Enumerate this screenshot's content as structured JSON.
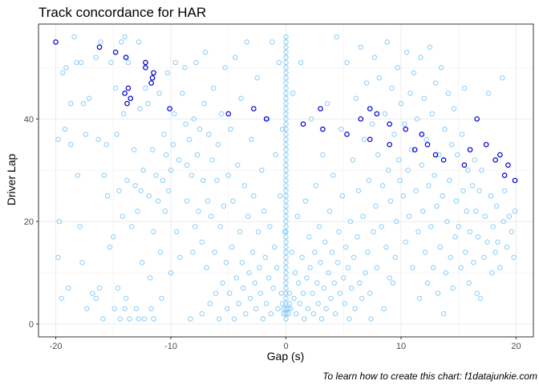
{
  "chart_data": {
    "type": "scatter",
    "title": "Track concordance for  HAR",
    "xlabel": "Gap (s)",
    "ylabel": "Driver Lap",
    "caption": "To learn how to create this chart: f1datajunkie.com",
    "xlim": [
      -21.5,
      21.5
    ],
    "ylim": [
      -2.5,
      58.5
    ],
    "xticks": [
      -20,
      -10,
      0,
      10,
      20
    ],
    "yticks": [
      0,
      20,
      40
    ],
    "grid": true,
    "legend": "none",
    "colors": {
      "light": "#87CEFA",
      "dark": "#0000CD"
    },
    "highlight_points": [
      [
        -20,
        55
      ],
      [
        -16.2,
        54
      ],
      [
        -14.8,
        53
      ],
      [
        -13.9,
        52
      ],
      [
        -13.7,
        46
      ],
      [
        -14,
        45
      ],
      [
        -13.5,
        44
      ],
      [
        -13.8,
        43
      ],
      [
        -12.2,
        51
      ],
      [
        -12.2,
        50
      ],
      [
        -11.5,
        49
      ],
      [
        -11.6,
        48
      ],
      [
        -11.7,
        47
      ],
      [
        -10.1,
        42
      ],
      [
        -5,
        41
      ],
      [
        -2.8,
        42
      ],
      [
        -1.7,
        40
      ],
      [
        1.5,
        39
      ],
      [
        3,
        42
      ],
      [
        3.2,
        38
      ],
      [
        5.3,
        37
      ],
      [
        6.5,
        40
      ],
      [
        7.3,
        42
      ],
      [
        7.3,
        36
      ],
      [
        7.9,
        41
      ],
      [
        9,
        39
      ],
      [
        9,
        35
      ],
      [
        10.4,
        38
      ],
      [
        11.2,
        34
      ],
      [
        11.8,
        37
      ],
      [
        12.3,
        35
      ],
      [
        13,
        33
      ],
      [
        13.7,
        32
      ],
      [
        15.5,
        31
      ],
      [
        16,
        34
      ],
      [
        17.4,
        35
      ],
      [
        16.6,
        40
      ],
      [
        18.2,
        32
      ],
      [
        18.6,
        33
      ],
      [
        19,
        29
      ],
      [
        19.3,
        31
      ],
      [
        19.9,
        28
      ]
    ],
    "background_points": [
      [
        -19.7,
        20
      ],
      [
        -19.8,
        13
      ],
      [
        -19.8,
        36
      ],
      [
        -19.5,
        5
      ],
      [
        -19.4,
        49
      ],
      [
        -19.2,
        38
      ],
      [
        -19.1,
        50
      ],
      [
        -18.9,
        7
      ],
      [
        -18.7,
        35
      ],
      [
        -18.7,
        43
      ],
      [
        -18.4,
        56
      ],
      [
        -18.2,
        51
      ],
      [
        -18.1,
        29
      ],
      [
        -17.9,
        19
      ],
      [
        -17.8,
        51
      ],
      [
        -17.7,
        12
      ],
      [
        -17.6,
        43
      ],
      [
        -17.4,
        37
      ],
      [
        -17.3,
        3
      ],
      [
        -17.1,
        44
      ],
      [
        -16.8,
        6
      ],
      [
        -16.5,
        52
      ],
      [
        -16.5,
        5
      ],
      [
        -16.3,
        36
      ],
      [
        -16.2,
        7
      ],
      [
        -16.1,
        55
      ],
      [
        -15.9,
        1
      ],
      [
        -15.8,
        29
      ],
      [
        -15.6,
        35
      ],
      [
        -15.5,
        25
      ],
      [
        -15.3,
        15
      ],
      [
        -15.2,
        51
      ],
      [
        -15,
        17
      ],
      [
        -14.9,
        3
      ],
      [
        -14.8,
        46
      ],
      [
        -14.7,
        37
      ],
      [
        -14.6,
        7
      ],
      [
        -14.5,
        26
      ],
      [
        -14.4,
        1
      ],
      [
        -14.3,
        55
      ],
      [
        -14.2,
        21
      ],
      [
        -14.1,
        41
      ],
      [
        -14,
        56
      ],
      [
        -14,
        3
      ],
      [
        -13.9,
        5
      ],
      [
        -13.8,
        28
      ],
      [
        -13.7,
        51
      ],
      [
        -13.6,
        1
      ],
      [
        -13.5,
        44
      ],
      [
        -13.4,
        19
      ],
      [
        -13.2,
        34
      ],
      [
        -13.1,
        27
      ],
      [
        -13,
        3
      ],
      [
        -12.9,
        22
      ],
      [
        -12.8,
        55
      ],
      [
        -12.8,
        1
      ],
      [
        -12.7,
        42
      ],
      [
        -12.6,
        26
      ],
      [
        -12.5,
        12
      ],
      [
        -12.4,
        30
      ],
      [
        -12.3,
        1
      ],
      [
        -12.2,
        46
      ],
      [
        -12,
        43
      ],
      [
        -11.9,
        25
      ],
      [
        -11.8,
        9
      ],
      [
        -11.7,
        3
      ],
      [
        -11.6,
        34
      ],
      [
        -11.5,
        18
      ],
      [
        -11.5,
        1
      ],
      [
        -11.3,
        29
      ],
      [
        -11.1,
        24
      ],
      [
        -11,
        45
      ],
      [
        -10.9,
        14
      ],
      [
        -10.8,
        5
      ],
      [
        -10.7,
        28
      ],
      [
        -10.6,
        37
      ],
      [
        -10.5,
        22
      ],
      [
        -10.4,
        33
      ],
      [
        -10.3,
        49
      ],
      [
        -10.2,
        26
      ],
      [
        -10,
        10
      ],
      [
        -10,
        30
      ],
      [
        -9.8,
        35
      ],
      [
        -9.7,
        41
      ],
      [
        -9.6,
        51
      ],
      [
        -9.5,
        18
      ],
      [
        -9.3,
        32
      ],
      [
        -9.2,
        13
      ],
      [
        -9,
        45
      ],
      [
        -8.8,
        50
      ],
      [
        -8.7,
        39
      ],
      [
        -8.6,
        24
      ],
      [
        -8.6,
        31
      ],
      [
        -8.4,
        36
      ],
      [
        -8.3,
        1
      ],
      [
        -8.2,
        29
      ],
      [
        -8.1,
        14
      ],
      [
        -8,
        40
      ],
      [
        -7.9,
        19
      ],
      [
        -7.8,
        51
      ],
      [
        -7.7,
        33
      ],
      [
        -7.6,
        22
      ],
      [
        -7.5,
        38
      ],
      [
        -7.3,
        2
      ],
      [
        -7.3,
        16
      ],
      [
        -7.2,
        28
      ],
      [
        -7.1,
        43
      ],
      [
        -7,
        53
      ],
      [
        -6.9,
        11
      ],
      [
        -6.8,
        24
      ],
      [
        -6.7,
        37
      ],
      [
        -6.6,
        4
      ],
      [
        -6.5,
        21
      ],
      [
        -6.4,
        32
      ],
      [
        -6.3,
        46
      ],
      [
        -6.2,
        14
      ],
      [
        -6.1,
        6
      ],
      [
        -6,
        28
      ],
      [
        -5.9,
        35
      ],
      [
        -5.8,
        1
      ],
      [
        -5.7,
        19
      ],
      [
        -5.6,
        41
      ],
      [
        -5.5,
        8
      ],
      [
        -5.4,
        23
      ],
      [
        -5.3,
        50
      ],
      [
        -5.2,
        12
      ],
      [
        -5.1,
        3
      ],
      [
        -5,
        29
      ],
      [
        -4.9,
        6
      ],
      [
        -4.8,
        38
      ],
      [
        -4.7,
        15
      ],
      [
        -4.6,
        24
      ],
      [
        -4.5,
        1
      ],
      [
        -4.4,
        52
      ],
      [
        -4.3,
        9
      ],
      [
        -4.2,
        31
      ],
      [
        -4.1,
        4
      ],
      [
        -4,
        18
      ],
      [
        -3.9,
        44
      ],
      [
        -3.8,
        12
      ],
      [
        -3.7,
        7
      ],
      [
        -3.6,
        27
      ],
      [
        -3.5,
        2
      ],
      [
        -3.4,
        55
      ],
      [
        -3.3,
        21
      ],
      [
        -3.2,
        10
      ],
      [
        -3.1,
        5
      ],
      [
        -3,
        36
      ],
      [
        -2.9,
        14
      ],
      [
        -2.8,
        25
      ],
      [
        -2.7,
        8
      ],
      [
        -2.6,
        3
      ],
      [
        -2.5,
        48
      ],
      [
        -2.4,
        18
      ],
      [
        -2.3,
        11
      ],
      [
        -2.2,
        6
      ],
      [
        -2.1,
        30
      ],
      [
        -2,
        1
      ],
      [
        -1.9,
        22
      ],
      [
        -1.8,
        13
      ],
      [
        -1.7,
        4
      ],
      [
        -1.6,
        40
      ],
      [
        -1.5,
        9
      ],
      [
        -1.4,
        19
      ],
      [
        -1.3,
        2
      ],
      [
        -1.2,
        55
      ],
      [
        -1.1,
        7
      ],
      [
        -1,
        15
      ],
      [
        -0.9,
        33
      ],
      [
        -0.8,
        11
      ],
      [
        -0.7,
        3
      ],
      [
        -0.6,
        51
      ],
      [
        -0.5,
        25
      ],
      [
        -0.4,
        6
      ],
      [
        -0.3,
        38
      ],
      [
        -0.2,
        2
      ],
      [
        -0.1,
        18
      ],
      [
        0.2,
        2
      ],
      [
        0.3,
        6
      ],
      [
        0.4,
        3
      ],
      [
        0.5,
        14
      ],
      [
        0.6,
        45
      ],
      [
        0.7,
        5
      ],
      [
        0.8,
        10
      ],
      [
        0.9,
        2
      ],
      [
        1,
        21
      ],
      [
        1.1,
        8
      ],
      [
        1.2,
        4
      ],
      [
        1.3,
        51
      ],
      [
        1.4,
        13
      ],
      [
        1.5,
        6
      ],
      [
        1.6,
        1
      ],
      [
        1.7,
        24
      ],
      [
        1.8,
        9
      ],
      [
        1.9,
        3
      ],
      [
        2,
        17
      ],
      [
        2.1,
        11
      ],
      [
        2.2,
        40
      ],
      [
        2.3,
        6
      ],
      [
        2.4,
        2
      ],
      [
        2.5,
        14
      ],
      [
        2.6,
        27
      ],
      [
        2.7,
        8
      ],
      [
        2.8,
        4
      ],
      [
        2.9,
        19
      ],
      [
        3,
        12
      ],
      [
        3.1,
        1
      ],
      [
        3.2,
        33
      ],
      [
        3.3,
        7
      ],
      [
        3.4,
        16
      ],
      [
        3.5,
        3
      ],
      [
        3.6,
        43
      ],
      [
        3.7,
        10
      ],
      [
        3.8,
        22
      ],
      [
        3.9,
        5
      ],
      [
        4,
        14
      ],
      [
        4.1,
        29
      ],
      [
        4.2,
        8
      ],
      [
        4.3,
        2
      ],
      [
        4.4,
        56
      ],
      [
        4.5,
        12
      ],
      [
        4.6,
        18
      ],
      [
        4.7,
        6
      ],
      [
        4.8,
        38
      ],
      [
        4.9,
        25
      ],
      [
        5,
        9
      ],
      [
        5.1,
        4
      ],
      [
        5.2,
        15
      ],
      [
        5.3,
        51
      ],
      [
        5.4,
        11
      ],
      [
        5.5,
        1
      ],
      [
        5.6,
        20
      ],
      [
        5.7,
        7
      ],
      [
        5.8,
        32
      ],
      [
        5.9,
        13
      ],
      [
        6,
        3
      ],
      [
        6.1,
        44
      ],
      [
        6.2,
        17
      ],
      [
        6.3,
        26
      ],
      [
        6.4,
        8
      ],
      [
        6.5,
        54
      ],
      [
        6.6,
        5
      ],
      [
        6.7,
        21
      ],
      [
        6.8,
        36
      ],
      [
        6.9,
        10
      ],
      [
        7,
        47
      ],
      [
        7.1,
        14
      ],
      [
        7.2,
        28
      ],
      [
        7.3,
        6
      ],
      [
        7.4,
        1
      ],
      [
        7.5,
        39
      ],
      [
        7.6,
        18
      ],
      [
        7.7,
        52
      ],
      [
        7.8,
        23
      ],
      [
        7.9,
        11
      ],
      [
        8,
        33
      ],
      [
        8.1,
        48
      ],
      [
        8.3,
        19
      ],
      [
        8.4,
        27
      ],
      [
        8.5,
        3
      ],
      [
        8.6,
        41
      ],
      [
        8.7,
        15
      ],
      [
        8.8,
        55
      ],
      [
        8.9,
        30
      ],
      [
        9,
        9
      ],
      [
        9.1,
        24
      ],
      [
        9.2,
        46
      ],
      [
        9.3,
        8
      ],
      [
        9.4,
        37
      ],
      [
        9.5,
        13
      ],
      [
        9.6,
        20
      ],
      [
        9.7,
        50
      ],
      [
        9.8,
        32
      ],
      [
        9.9,
        28
      ],
      [
        10,
        43
      ],
      [
        10.2,
        25
      ],
      [
        10.3,
        39
      ],
      [
        10.4,
        16
      ],
      [
        10.5,
        53
      ],
      [
        10.6,
        30
      ],
      [
        10.7,
        21
      ],
      [
        10.8,
        45
      ],
      [
        10.9,
        34
      ],
      [
        11,
        11
      ],
      [
        11.1,
        49
      ],
      [
        11.3,
        26
      ],
      [
        11.4,
        40
      ],
      [
        11.5,
        18
      ],
      [
        11.6,
        5
      ],
      [
        11.7,
        52
      ],
      [
        11.8,
        31
      ],
      [
        11.9,
        22
      ],
      [
        12,
        44
      ],
      [
        12.1,
        14
      ],
      [
        12.2,
        36
      ],
      [
        12.3,
        8
      ],
      [
        12.4,
        27
      ],
      [
        12.5,
        54
      ],
      [
        12.6,
        19
      ],
      [
        12.7,
        41
      ],
      [
        12.8,
        11
      ],
      [
        12.9,
        29
      ],
      [
        13,
        47
      ],
      [
        13.1,
        23
      ],
      [
        13.2,
        6
      ],
      [
        13.3,
        33
      ],
      [
        13.4,
        15
      ],
      [
        13.5,
        50
      ],
      [
        13.6,
        25
      ],
      [
        13.7,
        2
      ],
      [
        13.8,
        38
      ],
      [
        13.9,
        10
      ],
      [
        14,
        20
      ],
      [
        14.1,
        45
      ],
      [
        14.2,
        28
      ],
      [
        14.3,
        13
      ],
      [
        14.4,
        35
      ],
      [
        14.5,
        7
      ],
      [
        14.6,
        42
      ],
      [
        14.7,
        17
      ],
      [
        14.8,
        24
      ],
      [
        14.9,
        33
      ],
      [
        15,
        19
      ],
      [
        15.2,
        11
      ],
      [
        15.3,
        37
      ],
      [
        15.4,
        26
      ],
      [
        15.5,
        46
      ],
      [
        15.6,
        14
      ],
      [
        15.7,
        22
      ],
      [
        15.8,
        30
      ],
      [
        15.9,
        8
      ],
      [
        16,
        18
      ],
      [
        16.2,
        27
      ],
      [
        16.3,
        12
      ],
      [
        16.4,
        32
      ],
      [
        16.5,
        22
      ],
      [
        16.6,
        6
      ],
      [
        16.7,
        17
      ],
      [
        16.8,
        26
      ],
      [
        16.9,
        5
      ],
      [
        17,
        30
      ],
      [
        17.2,
        13
      ],
      [
        17.3,
        21
      ],
      [
        17.5,
        16
      ],
      [
        17.6,
        45
      ],
      [
        17.8,
        25
      ],
      [
        17.9,
        10
      ],
      [
        18,
        19
      ],
      [
        18.2,
        14
      ],
      [
        18.3,
        23
      ],
      [
        18.4,
        16
      ],
      [
        18.6,
        11
      ],
      [
        18.8,
        48
      ],
      [
        18.9,
        20
      ],
      [
        19,
        26
      ],
      [
        19.2,
        15
      ],
      [
        19.4,
        21
      ],
      [
        19.6,
        18
      ],
      [
        19.8,
        13
      ],
      [
        19.9,
        22
      ]
    ],
    "center_column": {
      "x": 0,
      "y_from": 1,
      "y_to": 56
    }
  }
}
